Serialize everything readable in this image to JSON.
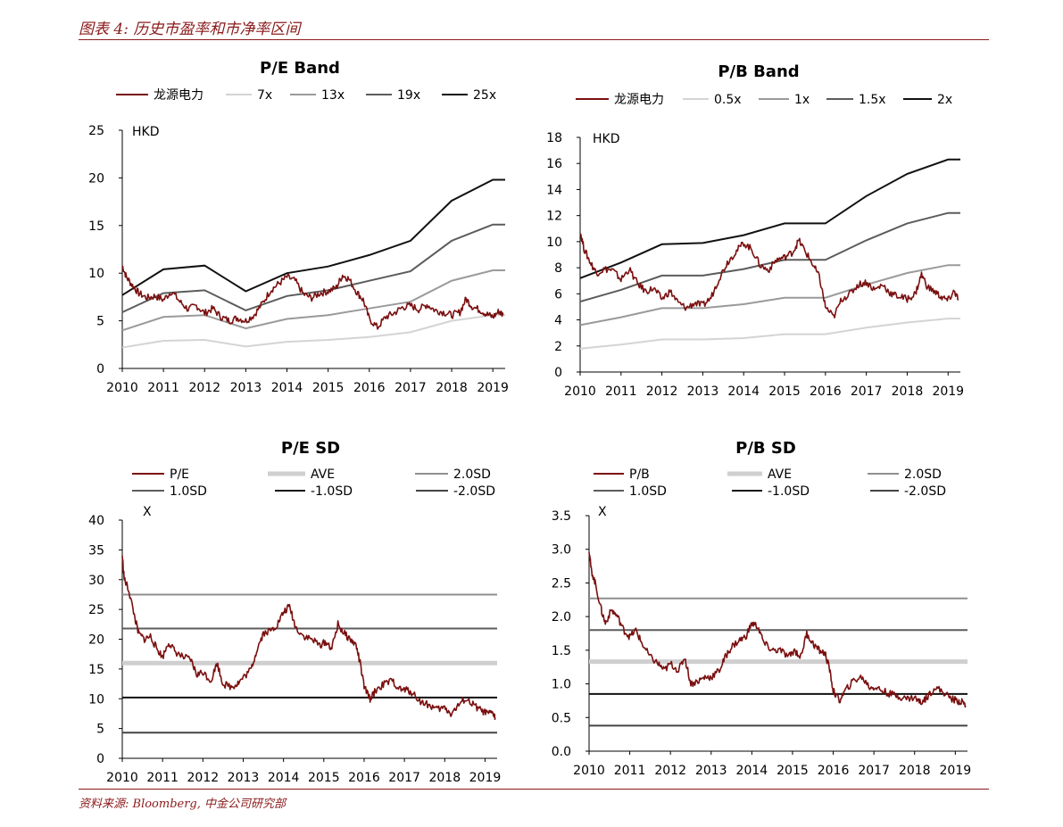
{
  "header": {
    "figure_title": "图表 4: 历史市盈率和市净率区间"
  },
  "footer": {
    "source": "资料来源: Bloomberg, 中金公司研究部"
  },
  "colors": {
    "accent": "#8b1a1a",
    "price": "#7a0f0f",
    "band_light": "#d4d4d4",
    "band_mid": "#9a9a9a",
    "band_dark": "#5c5c5c",
    "band_black": "#111111",
    "ave": "#cfcfcf"
  },
  "chart_data": [
    {
      "id": "pe_band",
      "type": "line",
      "title": "P/E Band",
      "unit_label": "HKD",
      "ylim": [
        0,
        25
      ],
      "yticks": [
        0,
        5,
        10,
        15,
        20,
        25
      ],
      "xlim": [
        2010,
        2019.3
      ],
      "xticks": [
        "2010",
        "2011",
        "2012",
        "2013",
        "2014",
        "2015",
        "2016",
        "2017",
        "2018",
        "2019"
      ],
      "legend": [
        {
          "name": "龙源电力",
          "color": "#7a0f0f"
        },
        {
          "name": "7x",
          "color": "#d4d4d4"
        },
        {
          "name": "13x",
          "color": "#9a9a9a"
        },
        {
          "name": "19x",
          "color": "#5c5c5c"
        },
        {
          "name": "25x",
          "color": "#111111"
        }
      ],
      "bands": [
        {
          "name": "7x",
          "color": "#d4d4d4",
          "x": [
            2010,
            2011,
            2012,
            2013,
            2014,
            2015,
            2016,
            2017,
            2018,
            2019,
            2019.3
          ],
          "y": [
            2.2,
            2.9,
            3.0,
            2.3,
            2.8,
            3.0,
            3.3,
            3.8,
            5.0,
            5.6,
            5.6
          ]
        },
        {
          "name": "13x",
          "color": "#9a9a9a",
          "x": [
            2010,
            2011,
            2012,
            2013,
            2014,
            2015,
            2016,
            2017,
            2018,
            2019,
            2019.3
          ],
          "y": [
            4.0,
            5.4,
            5.6,
            4.2,
            5.2,
            5.6,
            6.3,
            7.0,
            9.2,
            10.3,
            10.3
          ]
        },
        {
          "name": "19x",
          "color": "#5c5c5c",
          "x": [
            2010,
            2011,
            2012,
            2013,
            2014,
            2015,
            2016,
            2017,
            2018,
            2019,
            2019.3
          ],
          "y": [
            5.9,
            7.9,
            8.2,
            6.1,
            7.6,
            8.2,
            9.2,
            10.2,
            13.4,
            15.1,
            15.1
          ]
        },
        {
          "name": "25x",
          "color": "#111111",
          "x": [
            2010,
            2011,
            2012,
            2013,
            2014,
            2015,
            2016,
            2017,
            2018,
            2019,
            2019.3
          ],
          "y": [
            7.7,
            10.4,
            10.8,
            8.1,
            10.0,
            10.7,
            11.9,
            13.4,
            17.6,
            19.8,
            19.8
          ]
        }
      ],
      "price": {
        "name": "龙源电力",
        "color": "#7a0f0f",
        "x": [
          2010.0,
          2010.1,
          2010.25,
          2010.4,
          2010.6,
          2010.8,
          2011.0,
          2011.2,
          2011.4,
          2011.6,
          2011.8,
          2012.0,
          2012.2,
          2012.4,
          2012.6,
          2012.8,
          2013.0,
          2013.2,
          2013.4,
          2013.6,
          2013.8,
          2014.0,
          2014.2,
          2014.4,
          2014.6,
          2014.8,
          2015.0,
          2015.2,
          2015.35,
          2015.5,
          2015.7,
          2015.85,
          2016.0,
          2016.2,
          2016.4,
          2016.6,
          2016.8,
          2017.0,
          2017.2,
          2017.4,
          2017.6,
          2017.8,
          2018.0,
          2018.2,
          2018.35,
          2018.5,
          2018.7,
          2018.85,
          2019.0,
          2019.15,
          2019.25
        ],
        "y": [
          10.8,
          9.6,
          8.7,
          7.9,
          7.4,
          7.6,
          7.2,
          8.1,
          7.0,
          6.2,
          6.6,
          5.8,
          6.3,
          5.4,
          5.0,
          5.3,
          5.0,
          5.6,
          6.8,
          8.2,
          8.9,
          9.6,
          9.2,
          7.8,
          7.4,
          7.9,
          8.1,
          8.5,
          9.8,
          9.4,
          8.0,
          7.2,
          5.2,
          4.3,
          5.4,
          5.8,
          6.4,
          6.6,
          6.2,
          6.7,
          6.1,
          5.9,
          5.6,
          5.9,
          7.3,
          6.5,
          6.1,
          5.7,
          5.4,
          6.0,
          5.6
        ]
      }
    },
    {
      "id": "pb_band",
      "type": "line",
      "title": "P/B Band",
      "unit_label": "HKD",
      "ylim": [
        0,
        18
      ],
      "yticks": [
        0,
        2,
        4,
        6,
        8,
        10,
        12,
        14,
        16,
        18
      ],
      "xlim": [
        2010,
        2019.3
      ],
      "xticks": [
        "2010",
        "2011",
        "2012",
        "2013",
        "2014",
        "2015",
        "2016",
        "2017",
        "2018",
        "2019"
      ],
      "legend": [
        {
          "name": "龙源电力",
          "color": "#7a0f0f"
        },
        {
          "name": "0.5x",
          "color": "#d4d4d4"
        },
        {
          "name": "1x",
          "color": "#9a9a9a"
        },
        {
          "name": "1.5x",
          "color": "#5c5c5c"
        },
        {
          "name": "2x",
          "color": "#111111"
        }
      ],
      "bands": [
        {
          "name": "0.5x",
          "color": "#d4d4d4",
          "x": [
            2010,
            2011,
            2012,
            2013,
            2014,
            2015,
            2016,
            2017,
            2018,
            2019,
            2019.3
          ],
          "y": [
            1.8,
            2.1,
            2.5,
            2.5,
            2.6,
            2.9,
            2.9,
            3.4,
            3.8,
            4.1,
            4.1
          ]
        },
        {
          "name": "1x",
          "color": "#9a9a9a",
          "x": [
            2010,
            2011,
            2012,
            2013,
            2014,
            2015,
            2016,
            2017,
            2018,
            2019,
            2019.3
          ],
          "y": [
            3.6,
            4.2,
            4.9,
            4.9,
            5.2,
            5.7,
            5.7,
            6.7,
            7.6,
            8.2,
            8.2
          ]
        },
        {
          "name": "1.5x",
          "color": "#5c5c5c",
          "x": [
            2010,
            2011,
            2012,
            2013,
            2014,
            2015,
            2016,
            2017,
            2018,
            2019,
            2019.3
          ],
          "y": [
            5.4,
            6.3,
            7.4,
            7.4,
            7.9,
            8.6,
            8.6,
            10.1,
            11.4,
            12.2,
            12.2
          ]
        },
        {
          "name": "2x",
          "color": "#111111",
          "x": [
            2010,
            2011,
            2012,
            2013,
            2014,
            2015,
            2016,
            2017,
            2018,
            2019,
            2019.3
          ],
          "y": [
            7.2,
            8.4,
            9.8,
            9.9,
            10.5,
            11.4,
            11.4,
            13.5,
            15.2,
            16.3,
            16.3
          ]
        }
      ],
      "price": {
        "name": "龙源电力",
        "color": "#7a0f0f",
        "x": [
          2010.0,
          2010.1,
          2010.25,
          2010.4,
          2010.6,
          2010.8,
          2011.0,
          2011.2,
          2011.4,
          2011.6,
          2011.8,
          2012.0,
          2012.2,
          2012.4,
          2012.6,
          2012.8,
          2013.0,
          2013.2,
          2013.4,
          2013.6,
          2013.8,
          2014.0,
          2014.2,
          2014.4,
          2014.6,
          2014.8,
          2015.0,
          2015.2,
          2015.35,
          2015.5,
          2015.7,
          2015.85,
          2016.0,
          2016.2,
          2016.4,
          2016.6,
          2016.8,
          2017.0,
          2017.2,
          2017.4,
          2017.6,
          2017.8,
          2018.0,
          2018.2,
          2018.35,
          2018.5,
          2018.7,
          2018.85,
          2019.0,
          2019.15,
          2019.25
        ],
        "y": [
          10.8,
          9.4,
          8.4,
          7.6,
          7.9,
          7.8,
          7.1,
          7.9,
          6.8,
          6.2,
          6.4,
          5.6,
          6.2,
          5.3,
          4.9,
          5.3,
          5.1,
          5.7,
          7.2,
          8.4,
          9.2,
          9.9,
          9.4,
          8.2,
          7.8,
          8.6,
          8.8,
          9.2,
          10.1,
          9.3,
          8.2,
          7.3,
          5.0,
          4.2,
          5.6,
          6.0,
          6.7,
          6.9,
          6.3,
          6.7,
          6.0,
          5.8,
          5.6,
          6.0,
          7.5,
          6.5,
          6.1,
          5.7,
          5.5,
          6.2,
          5.6
        ]
      }
    },
    {
      "id": "pe_sd",
      "type": "line",
      "title": "P/E SD",
      "unit_label": "X",
      "ylim": [
        0,
        40
      ],
      "yticks": [
        0,
        5,
        10,
        15,
        20,
        25,
        30,
        35,
        40
      ],
      "xlim": [
        2010,
        2019.3
      ],
      "xticks": [
        "2010",
        "2011",
        "2012",
        "2013",
        "2014",
        "2015",
        "2016",
        "2017",
        "2018",
        "2019"
      ],
      "legend": [
        {
          "name": "P/E",
          "color": "#7a0f0f",
          "width": 2
        },
        {
          "name": "AVE",
          "color": "#cfcfcf",
          "width": 5
        },
        {
          "name": "2.0SD",
          "color": "#8f8f8f",
          "width": 2
        },
        {
          "name": "1.0SD",
          "color": "#5c5c5c",
          "width": 2
        },
        {
          "name": "-1.0SD",
          "color": "#111111",
          "width": 2
        },
        {
          "name": "-2.0SD",
          "color": "#444444",
          "width": 2
        }
      ],
      "levels": [
        {
          "name": "2.0SD",
          "value": 27.5,
          "color": "#8f8f8f",
          "width": 2
        },
        {
          "name": "1.0SD",
          "value": 21.8,
          "color": "#5c5c5c",
          "width": 2
        },
        {
          "name": "AVE",
          "value": 16.0,
          "color": "#cfcfcf",
          "width": 5
        },
        {
          "name": "-1.0SD",
          "value": 10.2,
          "color": "#111111",
          "width": 2
        },
        {
          "name": "-2.0SD",
          "value": 4.3,
          "color": "#444444",
          "width": 2
        }
      ],
      "series": {
        "name": "P/E",
        "color": "#7a0f0f",
        "x": [
          2010.0,
          2010.05,
          2010.15,
          2010.3,
          2010.4,
          2010.55,
          2010.7,
          2010.85,
          2011.0,
          2011.15,
          2011.3,
          2011.5,
          2011.7,
          2011.85,
          2012.0,
          2012.2,
          2012.35,
          2012.5,
          2012.7,
          2012.85,
          2013.0,
          2013.2,
          2013.35,
          2013.5,
          2013.7,
          2013.85,
          2014.0,
          2014.15,
          2014.3,
          2014.5,
          2014.7,
          2014.9,
          2015.05,
          2015.2,
          2015.35,
          2015.5,
          2015.65,
          2015.8,
          2015.9,
          2016.0,
          2016.15,
          2016.3,
          2016.5,
          2016.7,
          2016.9,
          2017.05,
          2017.2,
          2017.4,
          2017.6,
          2017.8,
          2018.0,
          2018.15,
          2018.3,
          2018.5,
          2018.7,
          2018.9,
          2019.05,
          2019.2,
          2019.25
        ],
        "y": [
          34.0,
          30.0,
          28.5,
          24.0,
          21.0,
          20.0,
          20.5,
          18.5,
          17.0,
          19.5,
          18.0,
          17.0,
          16.5,
          14.0,
          14.5,
          13.0,
          16.0,
          12.5,
          12.0,
          12.5,
          13.5,
          15.0,
          18.5,
          21.0,
          21.5,
          22.5,
          24.5,
          25.5,
          22.0,
          20.5,
          20.0,
          19.0,
          19.5,
          18.5,
          22.5,
          21.0,
          20.0,
          19.0,
          16.0,
          12.0,
          10.0,
          11.5,
          12.5,
          13.0,
          11.5,
          11.5,
          11.0,
          9.5,
          9.0,
          8.2,
          8.5,
          7.5,
          8.5,
          10.0,
          9.0,
          8.0,
          7.5,
          7.5,
          6.8
        ]
      }
    },
    {
      "id": "pb_sd",
      "type": "line",
      "title": "P/B SD",
      "unit_label": "X",
      "ylim": [
        0,
        3.5
      ],
      "yticks": [
        "0.0",
        "0.5",
        "1.0",
        "1.5",
        "2.0",
        "2.5",
        "3.0",
        "3.5"
      ],
      "xlim": [
        2010,
        2019.3
      ],
      "xticks": [
        "2010",
        "2011",
        "2012",
        "2013",
        "2014",
        "2015",
        "2016",
        "2017",
        "2018",
        "2019"
      ],
      "legend": [
        {
          "name": "P/B",
          "color": "#7a0f0f",
          "width": 2
        },
        {
          "name": "AVE",
          "color": "#cfcfcf",
          "width": 5
        },
        {
          "name": "2.0SD",
          "color": "#8f8f8f",
          "width": 2
        },
        {
          "name": "1.0SD",
          "color": "#5c5c5c",
          "width": 2
        },
        {
          "name": "-1.0SD",
          "color": "#111111",
          "width": 2
        },
        {
          "name": "-2.0SD",
          "color": "#444444",
          "width": 2
        }
      ],
      "levels": [
        {
          "name": "2.0SD",
          "value": 2.27,
          "color": "#8f8f8f",
          "width": 2
        },
        {
          "name": "1.0SD",
          "value": 1.8,
          "color": "#5c5c5c",
          "width": 2
        },
        {
          "name": "AVE",
          "value": 1.33,
          "color": "#cfcfcf",
          "width": 5
        },
        {
          "name": "-1.0SD",
          "value": 0.85,
          "color": "#111111",
          "width": 2
        },
        {
          "name": "-2.0SD",
          "value": 0.38,
          "color": "#444444",
          "width": 2
        }
      ],
      "series": {
        "name": "P/B",
        "color": "#7a0f0f",
        "x": [
          2010.0,
          2010.05,
          2010.15,
          2010.3,
          2010.4,
          2010.55,
          2010.7,
          2010.85,
          2011.0,
          2011.15,
          2011.3,
          2011.5,
          2011.7,
          2011.85,
          2012.0,
          2012.2,
          2012.35,
          2012.5,
          2012.7,
          2012.85,
          2013.0,
          2013.2,
          2013.35,
          2013.5,
          2013.7,
          2013.85,
          2014.0,
          2014.15,
          2014.3,
          2014.5,
          2014.7,
          2014.9,
          2015.05,
          2015.2,
          2015.35,
          2015.5,
          2015.65,
          2015.8,
          2015.9,
          2016.0,
          2016.15,
          2016.3,
          2016.5,
          2016.7,
          2016.9,
          2017.05,
          2017.2,
          2017.4,
          2017.6,
          2017.8,
          2018.0,
          2018.15,
          2018.3,
          2018.5,
          2018.7,
          2018.9,
          2019.05,
          2019.2,
          2019.25
        ],
        "y": [
          3.0,
          2.7,
          2.5,
          2.1,
          1.9,
          2.1,
          2.0,
          1.8,
          1.7,
          1.8,
          1.6,
          1.4,
          1.3,
          1.2,
          1.3,
          1.2,
          1.4,
          1.0,
          1.05,
          1.1,
          1.1,
          1.2,
          1.4,
          1.55,
          1.65,
          1.7,
          1.9,
          1.85,
          1.6,
          1.5,
          1.5,
          1.4,
          1.5,
          1.4,
          1.75,
          1.6,
          1.5,
          1.45,
          1.25,
          0.9,
          0.75,
          0.9,
          1.05,
          1.1,
          0.95,
          0.95,
          0.9,
          0.85,
          0.82,
          0.78,
          0.8,
          0.72,
          0.8,
          0.95,
          0.88,
          0.78,
          0.75,
          0.72,
          0.68
        ]
      }
    }
  ]
}
